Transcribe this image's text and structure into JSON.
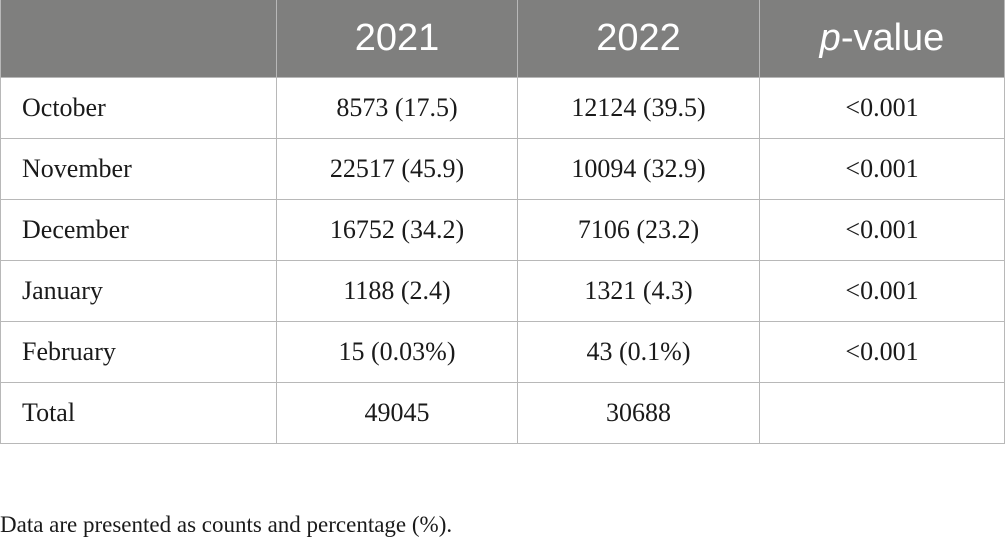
{
  "table": {
    "headers": [
      "",
      "2021",
      "2022",
      "value"
    ],
    "pvalue_italic_prefix": "p",
    "pvalue_hyphen": "-",
    "rows": [
      {
        "label": "October",
        "y2021": "8573 (17.5)",
        "y2022": "12124 (39.5)",
        "pvalue": "<0.001"
      },
      {
        "label": "November",
        "y2021": "22517 (45.9)",
        "y2022": "10094 (32.9)",
        "pvalue": "<0.001"
      },
      {
        "label": "December",
        "y2021": "16752 (34.2)",
        "y2022": "7106 (23.2)",
        "pvalue": "<0.001"
      },
      {
        "label": "January",
        "y2021": "1188 (2.4)",
        "y2022": "1321 (4.3)",
        "pvalue": "<0.001"
      },
      {
        "label": "February",
        "y2021": "15 (0.03%)",
        "y2022": "43 (0.1%)",
        "pvalue": "<0.001"
      },
      {
        "label": "Total",
        "y2021": "49045",
        "y2022": "30688",
        "pvalue": ""
      }
    ]
  },
  "footnote": "Data are presented as counts and percentage (%).",
  "colors": {
    "header_bg": "#7f7f7e",
    "header_text": "#ffffff",
    "grid": "#b8b8b8"
  }
}
